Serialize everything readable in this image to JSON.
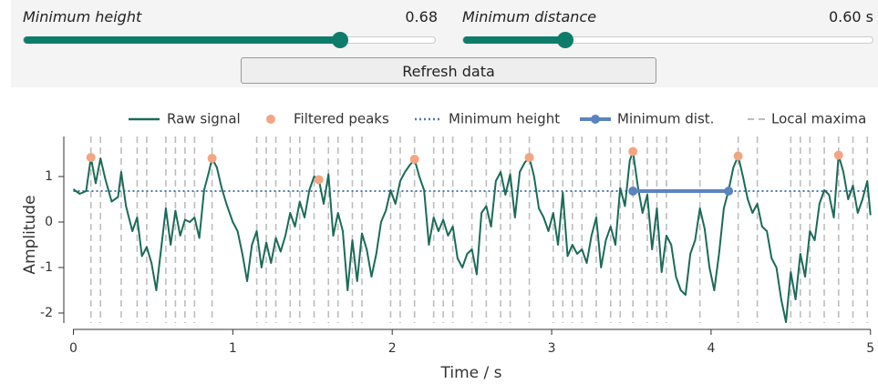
{
  "controls": {
    "min_height": {
      "label": "Minimum height",
      "value": 0.68
    },
    "min_distance": {
      "label": "Minimum distance",
      "value": 0.6,
      "value_label": "0.60 s"
    },
    "button": "Refresh data"
  },
  "chart_data": {
    "type": "line",
    "x_label": "Time / s",
    "y_label": "Amplitude",
    "xlim": [
      -0.06,
      5.03
    ],
    "ylim": [
      -2.22,
      1.88
    ],
    "xticks": [
      0,
      1,
      2,
      3,
      4,
      5
    ],
    "yticks": [
      -2,
      -1,
      0,
      1
    ],
    "series": [
      {
        "name": "Raw signal",
        "color": "#1b6b58",
        "x": [
          0.0,
          0.04,
          0.08,
          0.11,
          0.14,
          0.17,
          0.2,
          0.24,
          0.28,
          0.3,
          0.33,
          0.37,
          0.4,
          0.43,
          0.46,
          0.49,
          0.52,
          0.55,
          0.58,
          0.61,
          0.64,
          0.67,
          0.7,
          0.73,
          0.76,
          0.79,
          0.82,
          0.85,
          0.87,
          0.9,
          0.93,
          0.96,
          1.0,
          1.03,
          1.06,
          1.09,
          1.12,
          1.15,
          1.18,
          1.21,
          1.24,
          1.27,
          1.3,
          1.33,
          1.36,
          1.39,
          1.42,
          1.45,
          1.48,
          1.51,
          1.54,
          1.57,
          1.6,
          1.63,
          1.66,
          1.69,
          1.72,
          1.75,
          1.78,
          1.81,
          1.84,
          1.87,
          1.9,
          1.93,
          1.96,
          1.99,
          2.02,
          2.05,
          2.08,
          2.11,
          2.14,
          2.17,
          2.2,
          2.23,
          2.26,
          2.29,
          2.32,
          2.35,
          2.38,
          2.41,
          2.44,
          2.47,
          2.5,
          2.53,
          2.56,
          2.59,
          2.62,
          2.65,
          2.68,
          2.71,
          2.74,
          2.77,
          2.8,
          2.83,
          2.86,
          2.89,
          2.92,
          2.95,
          2.98,
          3.01,
          3.04,
          3.07,
          3.1,
          3.13,
          3.16,
          3.19,
          3.22,
          3.25,
          3.28,
          3.31,
          3.34,
          3.37,
          3.4,
          3.43,
          3.46,
          3.49,
          3.51,
          3.54,
          3.57,
          3.6,
          3.63,
          3.66,
          3.69,
          3.72,
          3.75,
          3.78,
          3.81,
          3.84,
          3.87,
          3.9,
          3.93,
          3.96,
          3.99,
          4.02,
          4.05,
          4.08,
          4.11,
          4.14,
          4.17,
          4.2,
          4.23,
          4.26,
          4.29,
          4.32,
          4.35,
          4.38,
          4.41,
          4.44,
          4.47,
          4.5,
          4.53,
          4.56,
          4.59,
          4.62,
          4.65,
          4.68,
          4.71,
          4.74,
          4.77,
          4.8,
          4.83,
          4.86,
          4.89,
          4.92,
          4.95,
          4.98,
          5.0
        ],
        "values": [
          0.72,
          0.62,
          0.68,
          1.42,
          0.85,
          1.4,
          0.95,
          0.45,
          0.55,
          1.1,
          0.35,
          -0.2,
          0.1,
          -0.75,
          -0.55,
          -0.9,
          -1.5,
          -0.6,
          0.3,
          -0.5,
          0.25,
          -0.3,
          0.05,
          0.0,
          0.1,
          -0.35,
          0.7,
          1.1,
          1.4,
          1.2,
          0.75,
          0.4,
          0.0,
          -0.2,
          -0.7,
          -1.3,
          -0.5,
          -0.2,
          -1.0,
          -0.45,
          -0.9,
          -0.35,
          -0.65,
          -0.3,
          0.2,
          -0.1,
          0.45,
          0.1,
          0.7,
          1.0,
          0.93,
          0.4,
          1.05,
          -0.3,
          0.2,
          -0.2,
          -1.5,
          -0.4,
          -1.3,
          -0.25,
          -0.6,
          -1.2,
          -0.7,
          0.0,
          0.25,
          0.7,
          0.4,
          0.9,
          1.1,
          1.25,
          1.38,
          1.0,
          0.7,
          -0.5,
          0.1,
          -0.2,
          0.05,
          -0.3,
          -0.1,
          -0.8,
          -1.0,
          -0.7,
          -0.6,
          -1.15,
          0.2,
          0.35,
          -0.1,
          0.9,
          1.1,
          0.6,
          1.05,
          0.1,
          1.1,
          1.3,
          1.42,
          1.0,
          0.3,
          0.1,
          -0.2,
          0.2,
          -0.5,
          0.65,
          -0.75,
          -0.5,
          -0.7,
          -0.6,
          -0.9,
          -0.3,
          0.1,
          -1.0,
          -0.4,
          -0.1,
          -0.5,
          0.75,
          0.35,
          1.35,
          1.55,
          0.8,
          0.2,
          0.6,
          -0.6,
          0.3,
          -1.1,
          -0.3,
          -0.5,
          -1.2,
          -1.5,
          -1.6,
          -0.7,
          -0.4,
          0.3,
          -0.15,
          -1.0,
          -1.5,
          -0.7,
          0.3,
          0.7,
          1.2,
          1.45,
          1.0,
          0.5,
          0.2,
          0.4,
          -0.1,
          -0.2,
          -0.8,
          -1.0,
          -1.7,
          -2.2,
          -1.1,
          -1.7,
          -0.7,
          -1.2,
          -0.2,
          -0.4,
          0.4,
          0.7,
          0.6,
          0.1,
          1.47,
          1.1,
          0.5,
          0.8,
          0.2,
          0.5,
          0.9,
          0.15
        ]
      },
      {
        "name": "Filtered peaks",
        "color": "#f4a582",
        "x": [
          0.11,
          0.87,
          1.54,
          2.14,
          2.86,
          3.51,
          4.17,
          4.8
        ],
        "values": [
          1.42,
          1.4,
          0.93,
          1.38,
          1.42,
          1.55,
          1.45,
          1.47
        ]
      },
      {
        "name": "Minimum height",
        "color": "#4a78b0",
        "value": 0.68
      },
      {
        "name": "Minimum dist.",
        "color": "#5b84bf",
        "x": [
          3.51,
          4.11
        ],
        "values": [
          0.68,
          0.68
        ]
      },
      {
        "name": "Local maxima",
        "color": "#bdbdbd",
        "x": [
          0.11,
          0.17,
          0.3,
          0.4,
          0.46,
          0.58,
          0.64,
          0.7,
          0.76,
          0.87,
          1.15,
          1.21,
          1.27,
          1.36,
          1.42,
          1.51,
          1.6,
          1.66,
          1.75,
          1.81,
          1.99,
          2.05,
          2.14,
          2.26,
          2.32,
          2.38,
          2.5,
          2.59,
          2.68,
          2.74,
          2.86,
          3.01,
          3.07,
          3.13,
          3.19,
          3.28,
          3.37,
          3.43,
          3.51,
          3.6,
          3.66,
          3.72,
          3.93,
          4.17,
          4.29,
          4.5,
          4.56,
          4.62,
          4.71,
          4.8,
          4.89,
          4.98
        ]
      }
    ]
  }
}
